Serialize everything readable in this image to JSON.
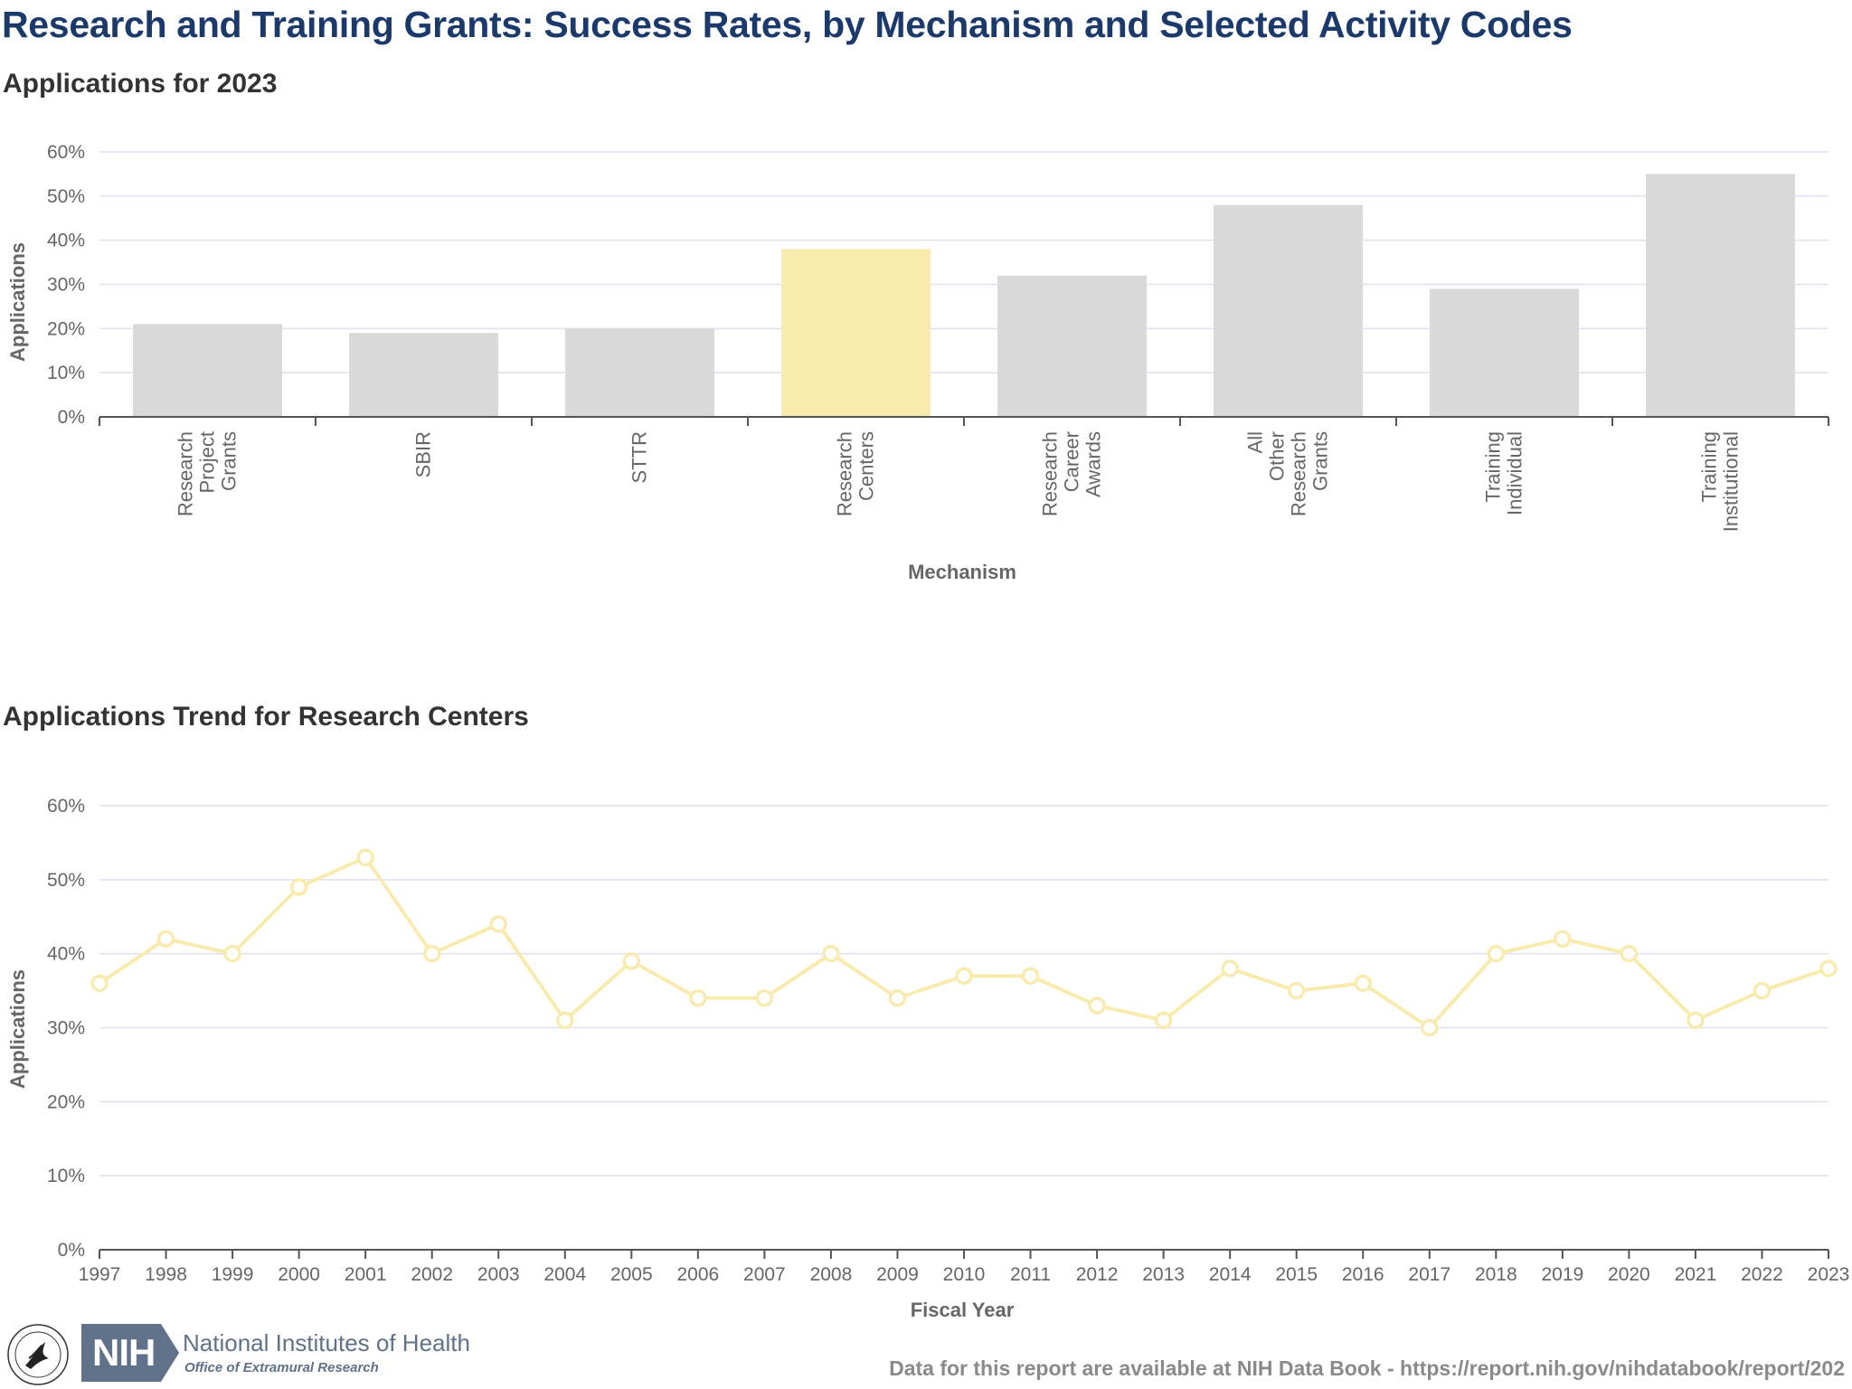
{
  "title": "Research and Training Grants: Success Rates, by Mechanism and Selected Activity Codes",
  "colors": {
    "title": "#1b3a6b",
    "bar_default": "#d9d9d9",
    "bar_highlight": "#f9ebae",
    "line": "#f9ebae",
    "grid": "#e0e0ee",
    "axis_text": "#666666"
  },
  "chart_data": [
    {
      "type": "bar",
      "title": "Applications for 2023",
      "xlabel": "Mechanism",
      "ylabel": "Applications",
      "y_unit": "%",
      "ylim": [
        0,
        60
      ],
      "y_ticks": [
        "0%",
        "10%",
        "20%",
        "30%",
        "40%",
        "50%",
        "60%"
      ],
      "grid": true,
      "categories": [
        [
          "Research",
          "Project",
          "Grants"
        ],
        [
          "SBIR"
        ],
        [
          "STTR"
        ],
        [
          "Research",
          "Centers"
        ],
        [
          "Research",
          "Career",
          "Awards"
        ],
        [
          "All",
          "Other",
          "Research",
          "Grants"
        ],
        [
          "Training",
          "Individual"
        ],
        [
          "Training",
          "Institutional"
        ]
      ],
      "values": [
        21,
        19,
        20,
        38,
        32,
        48,
        29,
        55
      ],
      "highlight_index": 3
    },
    {
      "type": "line",
      "title": "Applications Trend for Research Centers",
      "xlabel": "Fiscal Year",
      "ylabel": "Applications",
      "y_unit": "%",
      "ylim": [
        0,
        60
      ],
      "y_ticks": [
        "0%",
        "10%",
        "20%",
        "30%",
        "40%",
        "50%",
        "60%"
      ],
      "grid": true,
      "x": [
        "1997",
        "1998",
        "1999",
        "2000",
        "2001",
        "2002",
        "2003",
        "2004",
        "2005",
        "2006",
        "2007",
        "2008",
        "2009",
        "2010",
        "2011",
        "2012",
        "2013",
        "2014",
        "2015",
        "2016",
        "2017",
        "2018",
        "2019",
        "2020",
        "2021",
        "2022",
        "2023"
      ],
      "values": [
        36,
        42,
        40,
        49,
        53,
        40,
        44,
        31,
        39,
        34,
        34,
        40,
        34,
        37,
        37,
        33,
        31,
        38,
        35,
        36,
        30,
        40,
        42,
        40,
        31,
        35,
        38
      ]
    }
  ],
  "footer": {
    "nih_logo_text": "NIH",
    "institution": "National Institutes of Health",
    "office": "Office of Extramural Research",
    "note": "Data for this report are available at NIH Data Book - https://report.nih.gov/nihdatabook/report/202"
  }
}
